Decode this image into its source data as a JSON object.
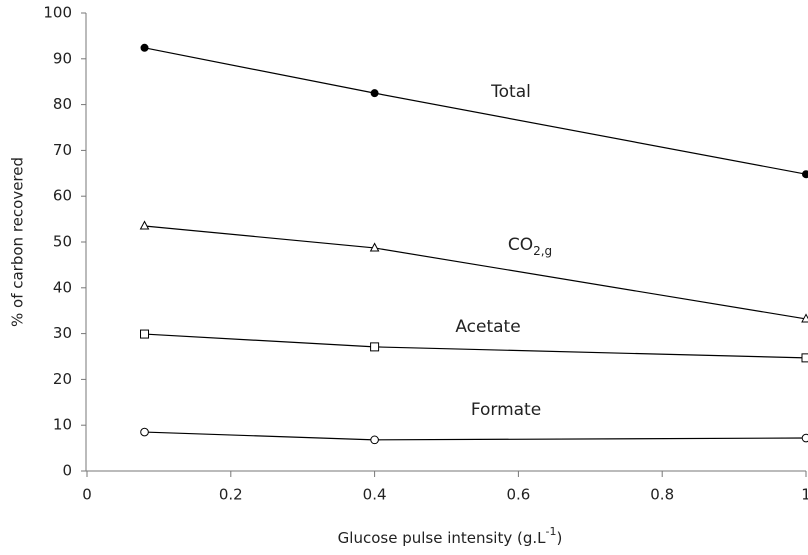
{
  "chart_data": {
    "type": "line",
    "ylabel": "% of carbon recovered",
    "xlabel": "Glucose pulse intensity (g.L",
    "xlabel_superscript": "-1",
    "xlabel_end": ")",
    "x": [
      0.08,
      0.4,
      1
    ],
    "series": [
      {
        "name": "Total",
        "marker": "filled-circle",
        "color": "#000000",
        "values": [
          92.4,
          82.5,
          64.8
        ]
      },
      {
        "name": "CO",
        "name_subscript": "2,g",
        "marker": "triangle",
        "color": "#000000",
        "values": [
          53.5,
          48.7,
          33.2
        ]
      },
      {
        "name": "Acetate",
        "marker": "square",
        "color": "#000000",
        "values": [
          29.9,
          27.1,
          24.7
        ]
      },
      {
        "name": "Formate",
        "marker": "circle",
        "color": "#000000",
        "values": [
          8.5,
          6.8,
          7.2
        ]
      }
    ],
    "xlim": [
      0,
      1
    ],
    "xticks": [
      0,
      0.2,
      0.4,
      0.6,
      0.8,
      1
    ],
    "ylim": [
      0,
      100
    ],
    "yticks": [
      0,
      10,
      20,
      30,
      40,
      50,
      60,
      70,
      80,
      90,
      100
    ],
    "grid": false
  }
}
